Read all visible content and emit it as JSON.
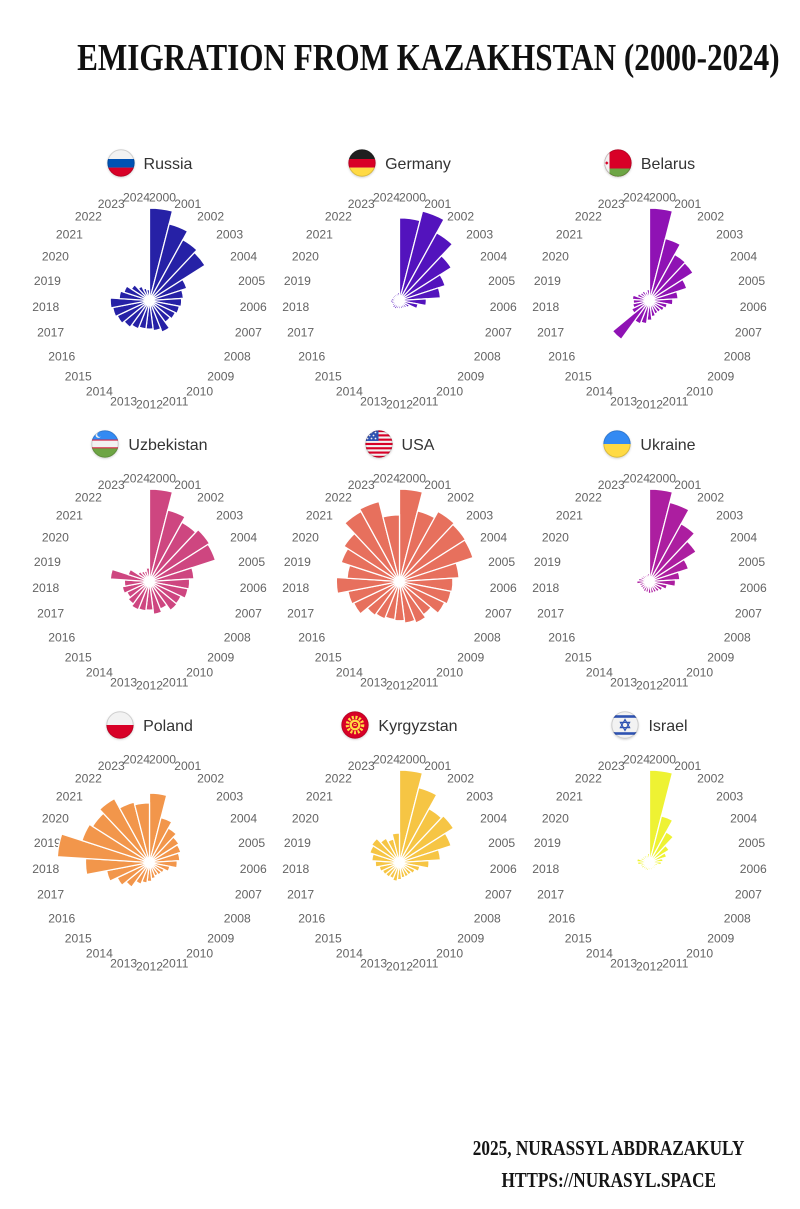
{
  "title": "EMIGRATION FROM KAZAKHSTAN (2000-2024)",
  "footer": {
    "line1": "2025, NURASSYL ABDRAZAKULY",
    "line2": "HTTPS://NURASYL.SPACE"
  },
  "chart_data": {
    "type": "bar",
    "subtype": "polar-rose-small-multiples",
    "title": "EMIGRATION FROM KAZAKHSTAN (2000-2024)",
    "layout": "3x3 grid of polar (nightingale) year-wheels, years clockwise from top, no numeric axis shown",
    "units": "relative radius, percent of each panel's longest sector (figure shows no numeric scale)",
    "years": [
      2000,
      2001,
      2002,
      2003,
      2004,
      2005,
      2006,
      2007,
      2008,
      2009,
      2010,
      2011,
      2012,
      2013,
      2014,
      2015,
      2016,
      2017,
      2018,
      2019,
      2020,
      2021,
      2022,
      2023,
      2024
    ],
    "charts": [
      {
        "country": "Russia",
        "flag_icon": "russia-flag-icon",
        "color": "#2621A6",
        "values": [
          100,
          85,
          74,
          70,
          40,
          34,
          32,
          30,
          28,
          26,
          34,
          30,
          28,
          28,
          30,
          33,
          36,
          38,
          40,
          30,
          26,
          20,
          14,
          10,
          8
        ]
      },
      {
        "country": "Germany",
        "flag_icon": "germany-flag-icon",
        "color": "#5313BD",
        "values": [
          89,
          100,
          83,
          65,
          50,
          42,
          26,
          17,
          8,
          6,
          5,
          5,
          5,
          5,
          6,
          6,
          5,
          5,
          6,
          5,
          4,
          4,
          4,
          4,
          5
        ]
      },
      {
        "country": "Belarus",
        "flag_icon": "belarus-flag-icon",
        "color": "#8F12B4",
        "values": [
          100,
          68,
          55,
          54,
          40,
          28,
          22,
          16,
          14,
          12,
          12,
          14,
          18,
          22,
          24,
          50,
          18,
          15,
          14,
          15,
          10,
          8,
          8,
          6,
          8
        ]
      },
      {
        "country": "Uzbekistan",
        "flag_icon": "uzbekistan-flag-icon",
        "color": "#CE4680",
        "values": [
          100,
          79,
          72,
          76,
          74,
          46,
          41,
          40,
          35,
          36,
          29,
          33,
          28,
          29,
          30,
          27,
          24,
          27,
          24,
          40,
          21,
          11,
          9,
          8,
          11
        ]
      },
      {
        "country": "USA",
        "flag_icon": "usa-flag-icon",
        "color": "#E7705D",
        "values": [
          100,
          78,
          86,
          84,
          83,
          63,
          56,
          55,
          52,
          42,
          46,
          43,
          40,
          39,
          41,
          43,
          53,
          55,
          67,
          55,
          65,
          70,
          86,
          89,
          71
        ]
      },
      {
        "country": "Ukraine",
        "flag_icon": "ukraine-flag-icon",
        "color": "#AC1EA0",
        "values": [
          100,
          88,
          70,
          58,
          42,
          30,
          25,
          16,
          12,
          10,
          9,
          9,
          9,
          8,
          8,
          7,
          7,
          7,
          10,
          8,
          6,
          5,
          4,
          4,
          5
        ]
      },
      {
        "country": "Poland",
        "flag_icon": "poland-flag-icon",
        "color": "#F2964B",
        "values": [
          74,
          48,
          40,
          35,
          33,
          30,
          27,
          19,
          14,
          13,
          12,
          14,
          17,
          19,
          22,
          30,
          36,
          45,
          68,
          100,
          76,
          72,
          78,
          66,
          63
        ]
      },
      {
        "country": "Kyrgyzstan",
        "flag_icon": "kyrgyzstan-flag-icon",
        "color": "#F6C544",
        "values": [
          100,
          83,
          65,
          68,
          57,
          42,
          29,
          19,
          15,
          13,
          13,
          13,
          15,
          17,
          15,
          16,
          17,
          19,
          23,
          27,
          31,
          33,
          27,
          23,
          29
        ]
      },
      {
        "country": "Israel",
        "flag_icon": "israel-flag-icon",
        "color": "#EEF233",
        "values": [
          100,
          50,
          35,
          22,
          16,
          11,
          9,
          5,
          4,
          4,
          3,
          4,
          4,
          5,
          5,
          5,
          6,
          6,
          9,
          10,
          6,
          5,
          5,
          4,
          6
        ]
      }
    ]
  }
}
